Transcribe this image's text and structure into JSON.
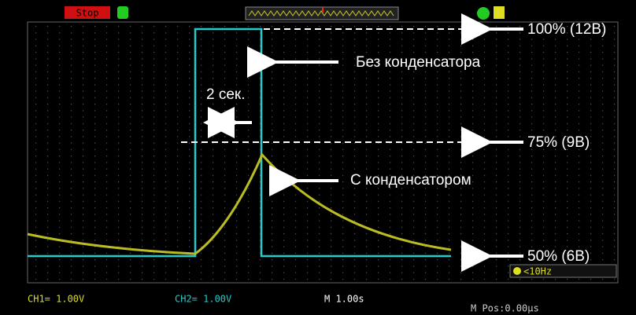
{
  "status": {
    "run_state": "Stop"
  },
  "annotations": {
    "level_100": "100% (12В)",
    "without_capacitor": "Без конденсатора",
    "duration": "2 сек.",
    "level_75": "75% (9В)",
    "with_capacitor": "С конденсатором",
    "level_50": "50% (6В)"
  },
  "footer": {
    "ch1": "CH1= 1.00V",
    "ch2": "CH2= 1.00V",
    "timebase": "M 1.00s",
    "position": "M Pos:0.00µs",
    "trigger_freq": "<10Hz"
  }
}
